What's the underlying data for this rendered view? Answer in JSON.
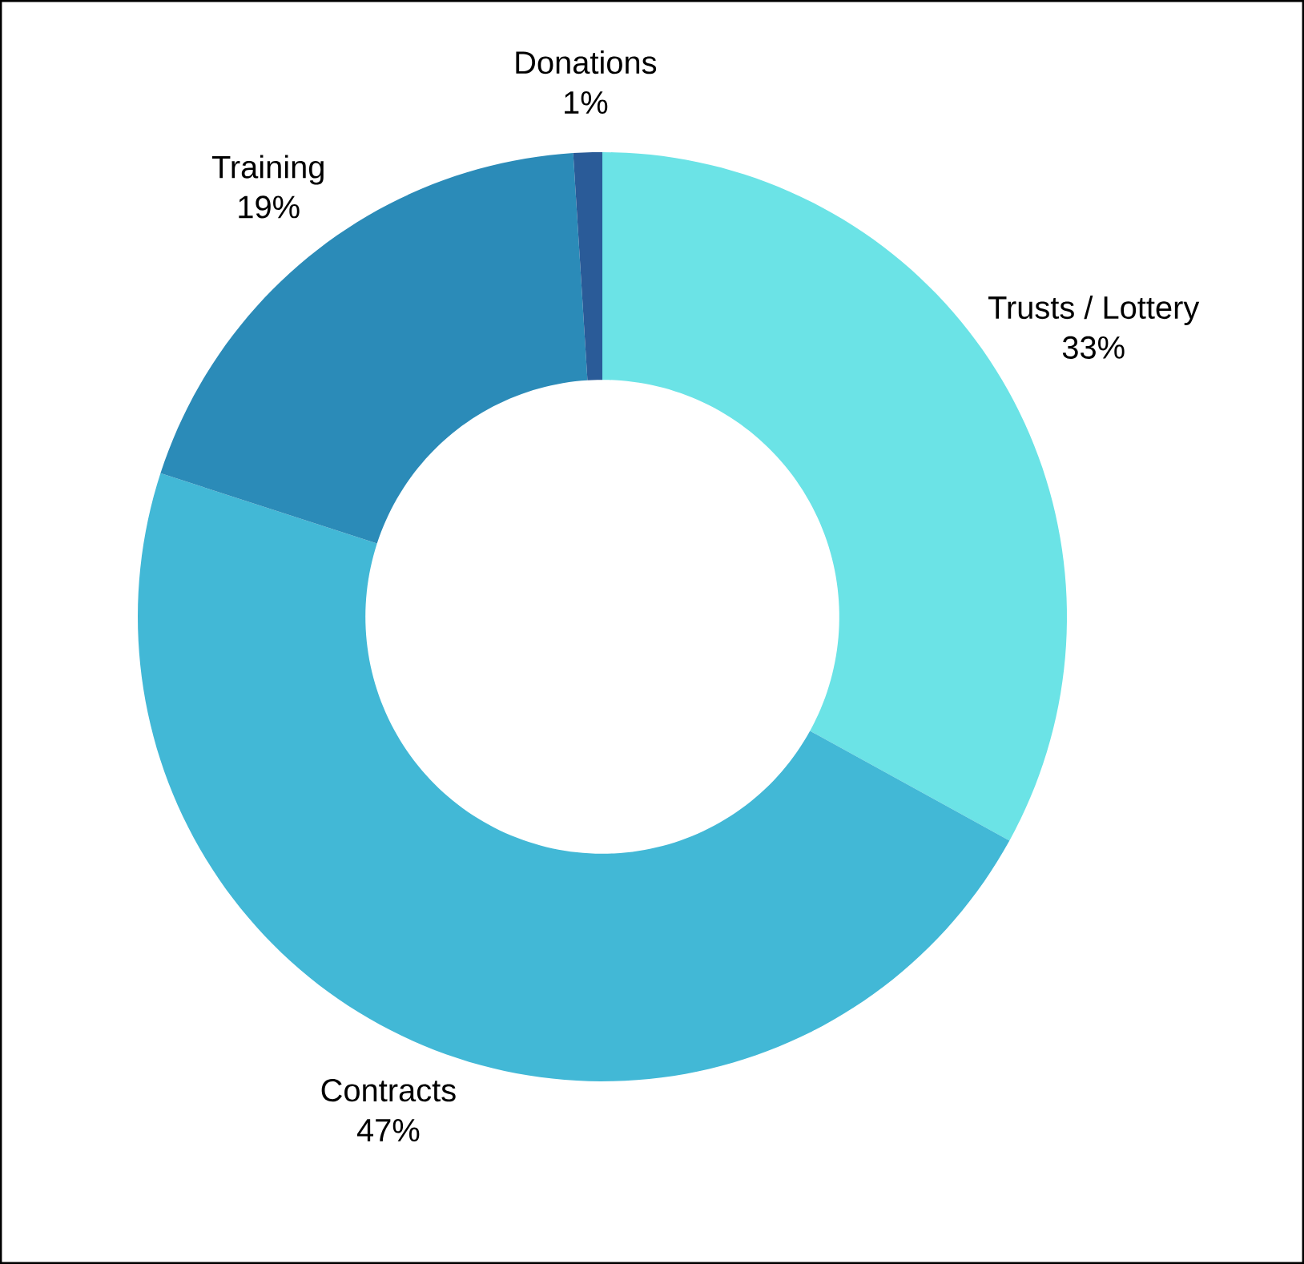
{
  "chart_data": {
    "type": "donut",
    "categories": [
      "Trusts / Lottery",
      "Contracts",
      "Training",
      "Donations"
    ],
    "values": [
      33,
      47,
      19,
      1
    ],
    "colors": [
      "#6be3e6",
      "#42b8d6",
      "#2b8bb8",
      "#2a5b98"
    ],
    "value_labels": [
      "33%",
      "47%",
      "19%",
      "1%"
    ]
  }
}
